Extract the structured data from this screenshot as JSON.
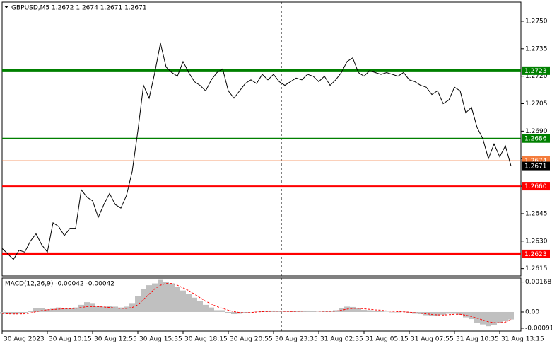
{
  "chart_data": [
    {
      "type": "line",
      "title": "GBPUSD,M5  1.2672 1.2674 1.2671 1.2671",
      "color": "#000000",
      "categories": [
        "30 Aug 2023",
        null,
        null,
        null,
        null,
        null,
        null,
        null,
        "30 Aug 10:15",
        null,
        null,
        null,
        null,
        null,
        null,
        null,
        "30 Aug 12:55",
        null,
        null,
        null,
        null,
        null,
        null,
        null,
        "30 Aug 15:35",
        null,
        null,
        null,
        null,
        null,
        null,
        null,
        "30 Aug 18:15",
        null,
        null,
        null,
        null,
        null,
        null,
        null,
        "30 Aug 20:55",
        null,
        null,
        null,
        null,
        null,
        null,
        null,
        "30 Aug 23:35",
        null,
        null,
        null,
        null,
        null,
        null,
        null,
        "31 Aug 02:35",
        null,
        null,
        null,
        null,
        null,
        null,
        null,
        "31 Aug 05:15",
        null,
        null,
        null,
        null,
        null,
        null,
        null,
        "31 Aug 07:55",
        null,
        null,
        null,
        null,
        null,
        null,
        null,
        "31 Aug 10:35",
        null,
        null,
        null,
        null,
        null,
        null,
        null,
        "31 Aug 13:15",
        null,
        null
      ],
      "values": [
        1.2626,
        1.2623,
        1.262,
        1.2625,
        1.2624,
        1.263,
        1.2634,
        1.2628,
        1.2624,
        1.264,
        1.2638,
        1.2633,
        1.2637,
        1.2637,
        1.2658,
        1.2654,
        1.2652,
        1.2643,
        1.265,
        1.2656,
        1.265,
        1.2648,
        1.2655,
        1.2668,
        1.269,
        1.2715,
        1.2708,
        1.2722,
        1.2738,
        1.2725,
        1.2722,
        1.272,
        1.2728,
        1.2722,
        1.2717,
        1.2715,
        1.2712,
        1.2718,
        1.2722,
        1.2724,
        1.2712,
        1.2708,
        1.2712,
        1.2716,
        1.2718,
        1.2716,
        1.2721,
        1.2718,
        1.2721,
        1.2717,
        1.2715,
        1.2717,
        1.2719,
        1.2718,
        1.2721,
        1.272,
        1.2717,
        1.272,
        1.2715,
        1.2718,
        1.2722,
        1.2728,
        1.273,
        1.2722,
        1.272,
        1.2723,
        1.2722,
        1.2721,
        1.2722,
        1.2721,
        1.272,
        1.2722,
        1.2718,
        1.2717,
        1.2715,
        1.2714,
        1.271,
        1.2712,
        1.2705,
        1.2707,
        1.2714,
        1.2712,
        1.27,
        1.2703,
        1.2692,
        1.2686,
        1.2675,
        1.2683,
        1.2676,
        1.2682,
        1.2671
      ],
      "ylim": [
        1.2611,
        1.27604
      ],
      "yticks": [
        {
          "value": 1.275,
          "label": "1.2750"
        },
        1.2735,
        {
          "value": 1.272,
          "label": "1.2720"
        },
        1.2705,
        {
          "value": 1.269,
          "label": "1.2690"
        },
        1.2675,
        {
          "value": 1.266,
          "label": "1.2660"
        },
        1.2645,
        {
          "value": 1.263,
          "label": "1.2630"
        },
        1.2615
      ],
      "levels": [
        {
          "value": 1.2723,
          "label": "1.2723",
          "color": "#008000",
          "width": 4
        },
        {
          "value": 1.2686,
          "label": "1.2686",
          "color": "#008000",
          "width": 2
        },
        {
          "value": 1.266,
          "label": "1.2660",
          "color": "#ff0000",
          "width": 2
        },
        {
          "value": 1.2623,
          "label": "1.2623",
          "color": "#ff0000",
          "width": 4
        }
      ],
      "price_markers": [
        {
          "value": 1.2674,
          "label": "1.2674",
          "color": "#f47c3c"
        },
        {
          "value": 1.2671,
          "label": "1.2671",
          "color": "#000000"
        }
      ]
    },
    {
      "type": "macd",
      "title": "MACD(12,26,9) -0.00042 -0.00042",
      "series": [
        {
          "color": "#c0c0c0",
          "values": [
            -0.0001,
            -0.00012,
            -0.00012,
            -0.0001,
            -5e-05,
            5e-05,
            0.0002,
            0.00022,
            0.00015,
            0.00018,
            0.00025,
            0.0002,
            0.0002,
            0.00025,
            0.0004,
            0.00055,
            0.0005,
            0.00035,
            0.0003,
            0.00035,
            0.0003,
            0.00025,
            0.0003,
            0.0005,
            0.0009,
            0.0013,
            0.0015,
            0.0016,
            0.0018,
            0.0017,
            0.0016,
            0.0014,
            0.0012,
            0.001,
            0.0008,
            0.0006,
            0.0004,
            0.00025,
            0.0001,
            0.0001,
            -5e-05,
            -0.00012,
            -0.0001,
            -5e-05,
            0,
            2e-05,
            5e-05,
            8e-05,
            8e-05,
            5e-05,
            2e-05,
            3e-05,
            5e-05,
            8e-05,
            8e-05,
            5e-05,
            2e-05,
            5e-05,
            3e-05,
            0.0001,
            0.0002,
            0.0003,
            0.00028,
            0.0002,
            0.00012,
            0.0001,
            8e-05,
            5e-05,
            2e-05,
            0,
            0,
            2e-05,
            -5e-05,
            -0.0001,
            -0.00012,
            -0.00018,
            -0.0002,
            -0.0002,
            -0.00015,
            -0.0001,
            -0.0001,
            -0.00015,
            -0.0003,
            -0.0004,
            -0.0006,
            -0.0007,
            -0.0008,
            -0.00075,
            -0.0006,
            -0.0005,
            -0.00042
          ]
        },
        {
          "color": "#ff0000",
          "values": [
            -8e-05,
            -0.0001,
            -0.00011,
            -0.00011,
            -0.0001,
            -6e-05,
            2e-05,
            8e-05,
            0.00012,
            0.00014,
            0.00016,
            0.00018,
            0.00018,
            0.0002,
            0.00025,
            0.0003,
            0.0003,
            0.0003,
            0.00028,
            0.00025,
            0.00022,
            0.0002,
            0.0002,
            0.00025,
            0.0004,
            0.0007,
            0.001,
            0.0013,
            0.0015,
            0.0016,
            0.0016,
            0.0015,
            0.00135,
            0.0012,
            0.001,
            0.0008,
            0.0006,
            0.00045,
            0.0003,
            0.0002,
            0.0001,
            2e-05,
            -3e-05,
            -5e-05,
            -3e-05,
            0,
            2e-05,
            3e-05,
            5e-05,
            5e-05,
            4e-05,
            3e-05,
            4e-05,
            5e-05,
            6e-05,
            6e-05,
            5e-05,
            4e-05,
            4e-05,
            5e-05,
            0.0001,
            0.00016,
            0.0002,
            0.0002,
            0.00018,
            0.00015,
            0.00012,
            0.0001,
            6e-05,
            4e-05,
            2e-05,
            1e-05,
            -1e-05,
            -4e-05,
            -7e-05,
            -0.0001,
            -0.00014,
            -0.00016,
            -0.00017,
            -0.00015,
            -0.00013,
            -0.00013,
            -0.00018,
            -0.00025,
            -0.00035,
            -0.00045,
            -0.00055,
            -0.0006,
            -0.0006,
            -0.00057,
            -0.00042
          ]
        }
      ],
      "ylim": [
        -0.00107,
        0.0019
      ],
      "yticks": [
        0.00168,
        {
          "value": 0,
          "label": "0.00"
        },
        -0.00091
      ]
    }
  ]
}
